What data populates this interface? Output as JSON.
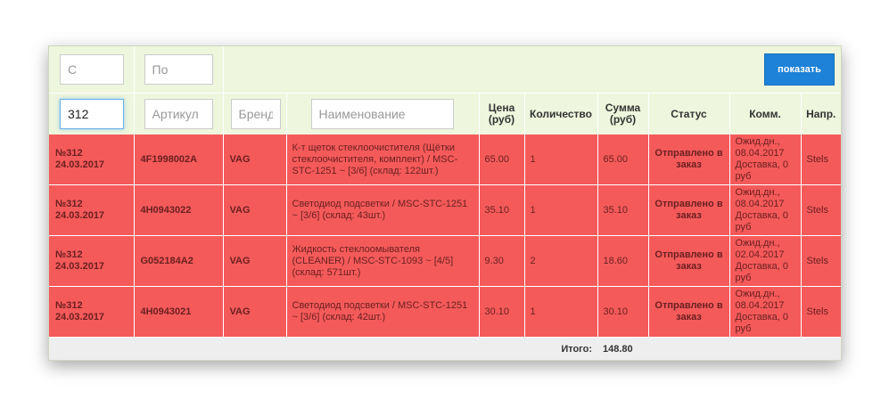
{
  "filters": {
    "date_from_placeholder": "С",
    "date_to_placeholder": "По",
    "order_value": "312",
    "article_placeholder": "Артикул",
    "brand_placeholder": "Бренд",
    "name_placeholder": "Наименование",
    "show_button": "показать"
  },
  "columns": {
    "price": "Цена",
    "price_unit": "(руб)",
    "quantity": "Количество",
    "sum": "Сумма",
    "sum_unit": "(руб)",
    "status": "Статус",
    "comment": "Комм.",
    "direction": "Напр."
  },
  "rows": [
    {
      "order": "№312",
      "date": "24.03.2017",
      "article": "4F1998002A",
      "brand": "VAG",
      "name": "К-т щеток стеклоочистителя (Щётки стеклоочистителя, комплект) / MSC-STC-1251 ~ [3/6] (склад: 122шт.)",
      "price": "65.00",
      "quantity": "1",
      "sum": "65.00",
      "status": "Отправлено в заказ",
      "comment": "Ожид.дн., 08.04.2017 Доставка, 0 руб",
      "direction": "Stels"
    },
    {
      "order": "№312",
      "date": "24.03.2017",
      "article": "4H0943022",
      "brand": "VAG",
      "name": "Светодиод подсветки / MSC-STC-1251 ~ [3/6] (склад: 43шт.)",
      "price": "35.10",
      "quantity": "1",
      "sum": "35.10",
      "status": "Отправлено в заказ",
      "comment": "Ожид.дн., 08.04.2017 Доставка, 0 руб",
      "direction": "Stels"
    },
    {
      "order": "№312",
      "date": "24.03.2017",
      "article": "G052184A2",
      "brand": "VAG",
      "name": "Жидкость стеклоомывателя (CLEANER) / MSC-STC-1093 ~ [4/5] (склад: 571шт.)",
      "price": "9.30",
      "quantity": "2",
      "sum": "18.60",
      "status": "Отправлено в заказ",
      "comment": "Ожид.дн., 02.04.2017 Доставка, 0 руб",
      "direction": "Stels"
    },
    {
      "order": "№312",
      "date": "24.03.2017",
      "article": "4H0943021",
      "brand": "VAG",
      "name": "Светодиод подсветки / MSC-STC-1251 ~ [3/6] (склад: 42шт.)",
      "price": "30.10",
      "quantity": "1",
      "sum": "30.10",
      "status": "Отправлено в заказ",
      "comment": "Ожид.дн., 08.04.2017 Доставка, 0 руб",
      "direction": "Stels"
    }
  ],
  "footer": {
    "total_label": "Итого:",
    "total_value": "148.80"
  },
  "colors": {
    "row_background": "#f55a5a",
    "filter_background": "#eef6dd",
    "button_background": "#1e82d8"
  }
}
